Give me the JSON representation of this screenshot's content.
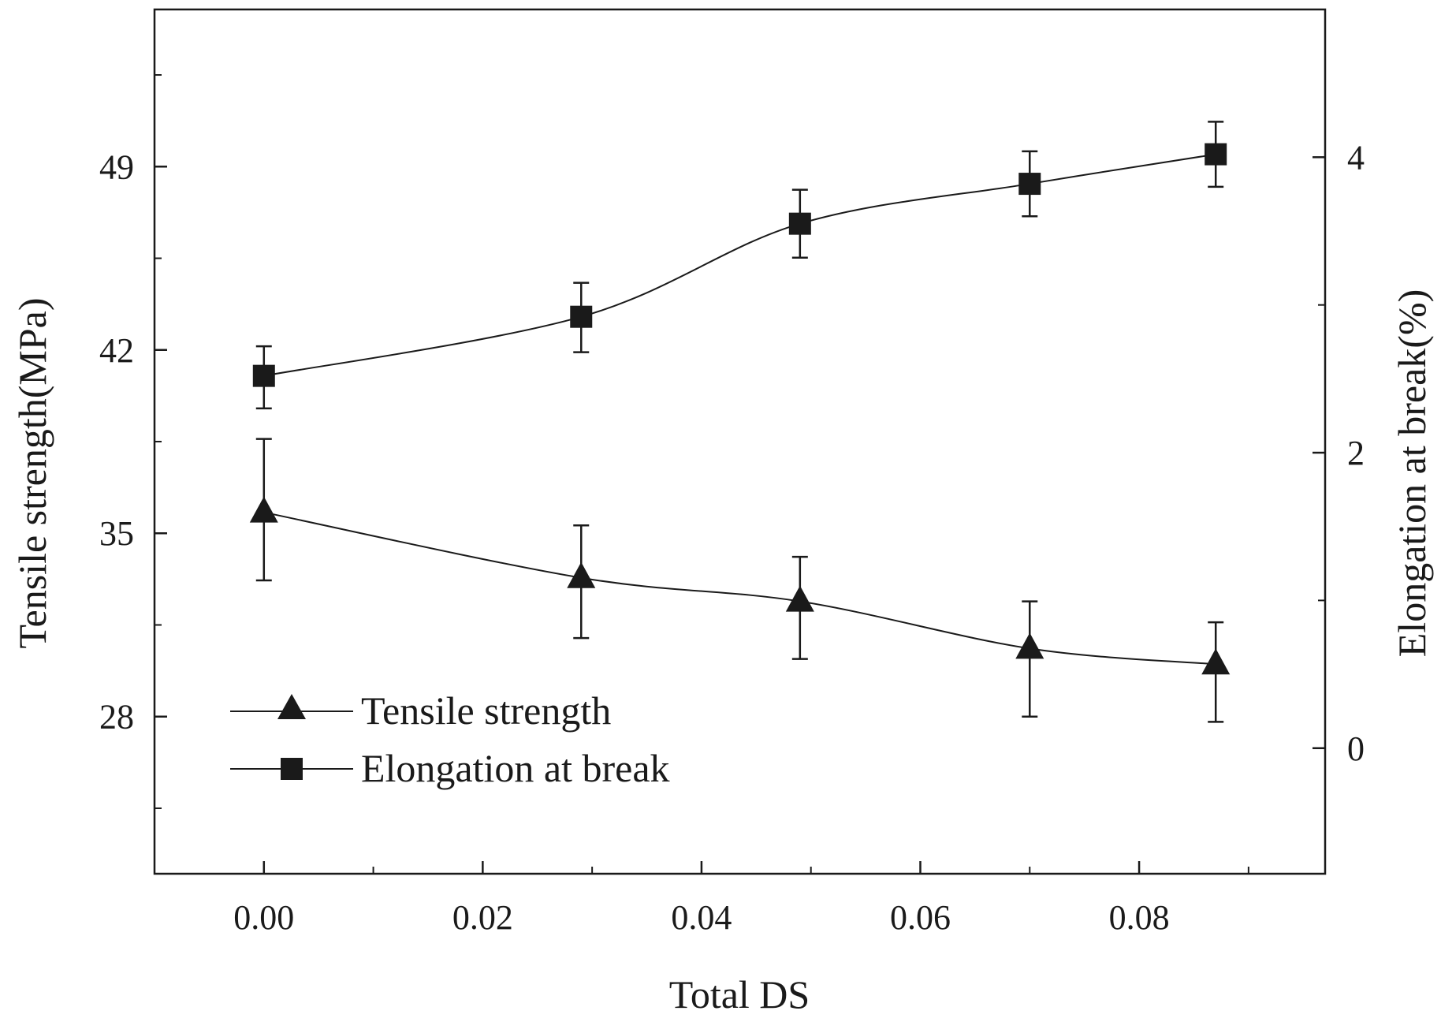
{
  "chart_data": {
    "type": "line",
    "x": [
      0.0,
      0.029,
      0.049,
      0.07,
      0.087
    ],
    "xlabel": "Total DS",
    "ylabel": "Tensile strength(MPa)",
    "y2label": "Elongation at break(%)",
    "xlim": [
      -0.01,
      0.097
    ],
    "ylim": [
      22,
      55
    ],
    "y2lim": [
      -0.85,
      5.0
    ],
    "xticks": [
      0.0,
      0.02,
      0.04,
      0.06,
      0.08
    ],
    "xtick_labels": [
      "0.00",
      "0.02",
      "0.04",
      "0.06",
      "0.08"
    ],
    "yticks": [
      28,
      35,
      42,
      49
    ],
    "ytick_labels": [
      "28",
      "35",
      "42",
      "49"
    ],
    "y2ticks": [
      0,
      2,
      4
    ],
    "y2tick_labels": [
      "0",
      "2",
      "4"
    ],
    "grid": false,
    "legend_position": "bottom-left",
    "series": [
      {
        "name": "Tensile strength",
        "axis": "left",
        "marker": "triangle",
        "values": [
          35.8,
          33.3,
          32.4,
          30.6,
          30.0
        ],
        "err_upper": [
          38.6,
          35.3,
          34.1,
          32.4,
          31.6
        ],
        "err_lower": [
          33.2,
          31.0,
          30.2,
          28.0,
          27.8
        ]
      },
      {
        "name": "Elongation at break",
        "axis": "right",
        "marker": "square",
        "values": [
          2.52,
          2.92,
          3.55,
          3.82,
          4.02
        ],
        "err_upper": [
          2.72,
          3.15,
          3.78,
          4.04,
          4.24
        ],
        "err_lower": [
          2.3,
          2.68,
          3.32,
          3.6,
          3.8
        ]
      }
    ],
    "colors": {
      "line": "#1a1a1a",
      "marker": "#1a1a1a",
      "label_text": "#5a3328"
    }
  }
}
